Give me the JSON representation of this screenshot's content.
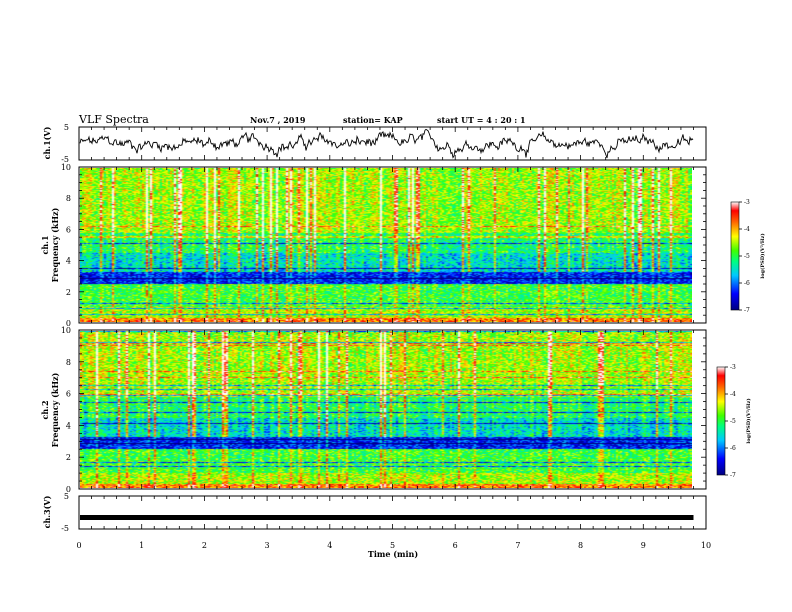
{
  "header": {
    "title": "VLF Spectra",
    "date": "Nov.7 , 2019",
    "station": "station= KAP",
    "start": "start UT = 4 : 20 : 1"
  },
  "chart_data": [
    {
      "type": "line",
      "ylabel": "ch.1(V)",
      "ylim": [
        -5,
        5
      ],
      "yticks": [
        "5",
        "-5"
      ],
      "xlim": [
        0,
        10
      ],
      "description_values": "ch.1 waveform fluctuates roughly between -4 V and +4 V over 0-9.8 min",
      "trace_color": "#000000"
    },
    {
      "type": "heatmap",
      "ylabel": "ch.1 Frequency (kHz)",
      "ylim": [
        0,
        10
      ],
      "yticks": [
        "0",
        "2",
        "4",
        "6",
        "8",
        "10"
      ],
      "xlim": [
        0,
        9.8
      ],
      "colorbar": {
        "label": "log(PSD)(V²/Hz)",
        "ticks": [
          "-3",
          "-4",
          "-5",
          "-6",
          "-7"
        ],
        "range": [
          -7,
          -3
        ]
      }
    },
    {
      "type": "heatmap",
      "ylabel": "ch.2 Frequency (kHz)",
      "ylim": [
        0,
        10
      ],
      "yticks": [
        "0",
        "2",
        "4",
        "6",
        "8",
        "10"
      ],
      "xlim": [
        0,
        9.8
      ],
      "colorbar": {
        "label": "log(PSD)(V²/Hz)",
        "ticks": [
          "-3",
          "-4",
          "-5",
          "-6",
          "-7"
        ],
        "range": [
          -7,
          -3
        ]
      }
    },
    {
      "type": "line",
      "ylabel": "ch.3(V)",
      "ylim": [
        -5,
        5
      ],
      "yticks": [
        "5",
        "-5"
      ],
      "xlim": [
        0,
        10
      ],
      "level": -1.5,
      "trace_color": "#000000"
    }
  ],
  "xaxis": {
    "label": "Time (min)",
    "ticks": [
      "0",
      "1",
      "2",
      "3",
      "4",
      "5",
      "6",
      "7",
      "8",
      "9",
      "10"
    ],
    "range": [
      0,
      10
    ]
  }
}
